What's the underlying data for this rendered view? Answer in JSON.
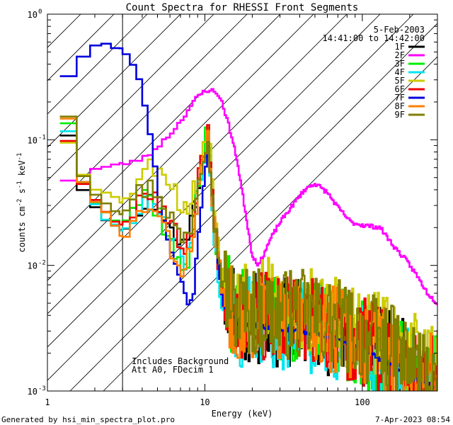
{
  "chart_data": {
    "type": "line",
    "title": "Count Spectra for RHESSI Front Segments",
    "xlabel": "Energy (keV)",
    "ylabel_parts": [
      "counts cm",
      "-2",
      " s",
      "-1",
      " keV",
      "-1"
    ],
    "xscale": "log",
    "yscale": "log",
    "xlim": [
      1,
      300
    ],
    "ylim": [
      0.001,
      1
    ],
    "x_ticks": [
      {
        "v": 1,
        "label": "1"
      },
      {
        "v": 10,
        "label": "10"
      },
      {
        "v": 100,
        "label": "100"
      }
    ],
    "y_ticks": [
      {
        "v": 0.001,
        "base": "10",
        "exp": "-3"
      },
      {
        "v": 0.01,
        "base": "10",
        "exp": "-2"
      },
      {
        "v": 0.1,
        "base": "10",
        "exp": "-1"
      },
      {
        "v": 1,
        "base": "10",
        "exp": "0"
      }
    ],
    "date": "5-Feb-2003",
    "time_range": "14:41:00 to 14:42:00",
    "excluded_region": {
      "from": 1,
      "to": 3
    },
    "annotations": [
      "Includes Background",
      "Att A0, FDecim 1"
    ],
    "series": [
      {
        "name": "1F",
        "color": "#000000",
        "seed": 11,
        "pts": [
          [
            1.3,
            0.14
          ],
          [
            1.6,
            0.045
          ],
          [
            2.0,
            0.03
          ],
          [
            2.5,
            0.022
          ],
          [
            3.0,
            0.018
          ],
          [
            3.6,
            0.028
          ],
          [
            4.3,
            0.033
          ],
          [
            5.0,
            0.03
          ],
          [
            6.0,
            0.02
          ],
          [
            7.0,
            0.014
          ],
          [
            8.0,
            0.02
          ],
          [
            9.0,
            0.04
          ],
          [
            10.5,
            0.11
          ],
          [
            11.5,
            0.02
          ],
          [
            13.0,
            0.006
          ],
          [
            16,
            0.004
          ],
          [
            25,
            0.0035
          ],
          [
            40,
            0.0035
          ],
          [
            70,
            0.003
          ],
          [
            120,
            0.0022
          ],
          [
            200,
            0.0015
          ],
          [
            280,
            0.0012
          ]
        ]
      },
      {
        "name": "2F",
        "color": "#ff00ff",
        "seed": 23,
        "pts": [
          [
            1.2,
            0.05
          ],
          [
            1.5,
            0.047
          ],
          [
            1.8,
            0.056
          ],
          [
            2.2,
            0.06
          ],
          [
            2.8,
            0.063
          ],
          [
            3.5,
            0.067
          ],
          [
            4.3,
            0.073
          ],
          [
            5,
            0.088
          ],
          [
            6,
            0.11
          ],
          [
            7,
            0.14
          ],
          [
            8,
            0.18
          ],
          [
            9,
            0.22
          ],
          [
            10,
            0.245
          ],
          [
            11,
            0.25
          ],
          [
            12.5,
            0.22
          ],
          [
            14,
            0.14
          ],
          [
            16,
            0.07
          ],
          [
            18,
            0.028
          ],
          [
            20,
            0.012
          ],
          [
            22,
            0.01
          ],
          [
            26,
            0.016
          ],
          [
            30,
            0.022
          ],
          [
            36,
            0.03
          ],
          [
            43,
            0.04
          ],
          [
            50,
            0.045
          ],
          [
            60,
            0.038
          ],
          [
            70,
            0.029
          ],
          [
            85,
            0.022
          ],
          [
            100,
            0.021
          ],
          [
            130,
            0.02
          ],
          [
            160,
            0.014
          ],
          [
            190,
            0.011
          ],
          [
            220,
            0.0085
          ],
          [
            260,
            0.006
          ],
          [
            300,
            0.005
          ]
        ]
      },
      {
        "name": "3F",
        "color": "#00ee00",
        "seed": 37,
        "pts": [
          [
            1.3,
            0.18
          ],
          [
            1.6,
            0.05
          ],
          [
            2.0,
            0.033
          ],
          [
            2.5,
            0.026
          ],
          [
            3.0,
            0.021
          ],
          [
            3.6,
            0.03
          ],
          [
            4.3,
            0.038
          ],
          [
            5.0,
            0.028
          ],
          [
            6.0,
            0.016
          ],
          [
            7.0,
            0.009
          ],
          [
            8.0,
            0.012
          ],
          [
            9.0,
            0.04
          ],
          [
            10.5,
            0.13
          ],
          [
            11.5,
            0.02
          ],
          [
            13.0,
            0.006
          ],
          [
            16,
            0.0042
          ],
          [
            25,
            0.0038
          ],
          [
            40,
            0.0036
          ],
          [
            70,
            0.003
          ],
          [
            120,
            0.0022
          ],
          [
            200,
            0.0015
          ],
          [
            280,
            0.0012
          ]
        ]
      },
      {
        "name": "4F",
        "color": "#00e5ee",
        "seed": 41,
        "pts": [
          [
            1.3,
            0.15
          ],
          [
            1.6,
            0.05
          ],
          [
            2.0,
            0.03
          ],
          [
            2.5,
            0.022
          ],
          [
            3.0,
            0.019
          ],
          [
            3.6,
            0.026
          ],
          [
            4.3,
            0.03
          ],
          [
            5.0,
            0.026
          ],
          [
            6.0,
            0.016
          ],
          [
            7.0,
            0.011
          ],
          [
            8.0,
            0.012
          ],
          [
            9.0,
            0.035
          ],
          [
            10.5,
            0.1
          ],
          [
            11.5,
            0.015
          ],
          [
            13.0,
            0.004
          ],
          [
            16,
            0.0035
          ],
          [
            25,
            0.0035
          ],
          [
            40,
            0.0033
          ],
          [
            70,
            0.0028
          ],
          [
            120,
            0.002
          ],
          [
            200,
            0.0014
          ],
          [
            280,
            0.0011
          ]
        ]
      },
      {
        "name": "5F",
        "color": "#cccc00",
        "seed": 53,
        "pts": [
          [
            1.3,
            0.11
          ],
          [
            1.6,
            0.06
          ],
          [
            2.0,
            0.042
          ],
          [
            2.5,
            0.036
          ],
          [
            3.0,
            0.032
          ],
          [
            3.6,
            0.045
          ],
          [
            4.3,
            0.058
          ],
          [
            5.0,
            0.065
          ],
          [
            6.0,
            0.05
          ],
          [
            7.0,
            0.03
          ],
          [
            8.0,
            0.03
          ],
          [
            9.0,
            0.05
          ],
          [
            10.5,
            0.13
          ],
          [
            11.5,
            0.03
          ],
          [
            13.0,
            0.008
          ],
          [
            16,
            0.0055
          ],
          [
            25,
            0.005
          ],
          [
            40,
            0.0045
          ],
          [
            70,
            0.0038
          ],
          [
            120,
            0.0028
          ],
          [
            200,
            0.0019
          ],
          [
            280,
            0.0014
          ]
        ]
      },
      {
        "name": "6F",
        "color": "#ee0000",
        "seed": 67,
        "pts": [
          [
            1.3,
            0.12
          ],
          [
            1.6,
            0.05
          ],
          [
            2.0,
            0.033
          ],
          [
            2.5,
            0.026
          ],
          [
            3.0,
            0.02
          ],
          [
            3.6,
            0.032
          ],
          [
            4.3,
            0.04
          ],
          [
            5.0,
            0.035
          ],
          [
            6.0,
            0.022
          ],
          [
            7.0,
            0.014
          ],
          [
            8.0,
            0.016
          ],
          [
            9.0,
            0.045
          ],
          [
            10.5,
            0.12
          ],
          [
            11.5,
            0.02
          ],
          [
            13.0,
            0.006
          ],
          [
            16,
            0.0042
          ],
          [
            25,
            0.0038
          ],
          [
            40,
            0.0036
          ],
          [
            70,
            0.003
          ],
          [
            120,
            0.0022
          ],
          [
            200,
            0.0015
          ],
          [
            280,
            0.0012
          ]
        ]
      },
      {
        "name": "7F",
        "color": "#0000dd",
        "seed": 79,
        "pts": [
          [
            1.2,
            0.28
          ],
          [
            1.4,
            0.34
          ],
          [
            1.6,
            0.43
          ],
          [
            1.8,
            0.5
          ],
          [
            2.1,
            0.56
          ],
          [
            2.4,
            0.58
          ],
          [
            2.8,
            0.55
          ],
          [
            3.1,
            0.5
          ],
          [
            3.5,
            0.41
          ],
          [
            3.9,
            0.28
          ],
          [
            4.3,
            0.16
          ],
          [
            4.7,
            0.075
          ],
          [
            5.2,
            0.032
          ],
          [
            5.8,
            0.017
          ],
          [
            6.5,
            0.01
          ],
          [
            7.2,
            0.007
          ],
          [
            7.8,
            0.005
          ],
          [
            8.5,
            0.006
          ],
          [
            9.0,
            0.015
          ],
          [
            9.5,
            0.03
          ],
          [
            10.5,
            0.09
          ],
          [
            11.5,
            0.02
          ],
          [
            13,
            0.005
          ],
          [
            16,
            0.0035
          ],
          [
            25,
            0.0032
          ],
          [
            40,
            0.003
          ],
          [
            70,
            0.0026
          ],
          [
            120,
            0.0019
          ],
          [
            200,
            0.0013
          ],
          [
            280,
            0.0011
          ]
        ]
      },
      {
        "name": "8F",
        "color": "#ff7f00",
        "seed": 83,
        "pts": [
          [
            1.3,
            0.2
          ],
          [
            1.6,
            0.05
          ],
          [
            2.0,
            0.032
          ],
          [
            2.5,
            0.024
          ],
          [
            3.0,
            0.016
          ],
          [
            3.6,
            0.022
          ],
          [
            4.3,
            0.03
          ],
          [
            5.0,
            0.025
          ],
          [
            6.0,
            0.014
          ],
          [
            7.0,
            0.009
          ],
          [
            8.0,
            0.012
          ],
          [
            9.0,
            0.035
          ],
          [
            10.5,
            0.11
          ],
          [
            11.5,
            0.02
          ],
          [
            13.0,
            0.006
          ],
          [
            16,
            0.0042
          ],
          [
            25,
            0.004
          ],
          [
            40,
            0.0037
          ],
          [
            70,
            0.0031
          ],
          [
            120,
            0.0023
          ],
          [
            200,
            0.0016
          ],
          [
            280,
            0.0012
          ]
        ]
      },
      {
        "name": "9F",
        "color": "#7f7f00",
        "seed": 97,
        "pts": [
          [
            1.3,
            0.2
          ],
          [
            1.6,
            0.06
          ],
          [
            2.0,
            0.038
          ],
          [
            2.5,
            0.03
          ],
          [
            3.0,
            0.026
          ],
          [
            3.6,
            0.035
          ],
          [
            4.3,
            0.042
          ],
          [
            5.0,
            0.04
          ],
          [
            6.0,
            0.026
          ],
          [
            7.0,
            0.016
          ],
          [
            8.0,
            0.018
          ],
          [
            9.0,
            0.045
          ],
          [
            10.5,
            0.12
          ],
          [
            11.5,
            0.022
          ],
          [
            13.0,
            0.007
          ],
          [
            16,
            0.0045
          ],
          [
            25,
            0.0042
          ],
          [
            40,
            0.004
          ],
          [
            70,
            0.0034
          ],
          [
            120,
            0.0025
          ],
          [
            200,
            0.0017
          ],
          [
            280,
            0.0013
          ]
        ]
      }
    ]
  },
  "footer": {
    "generated": "Generated by hsi_min_spectra_plot.pro",
    "timestamp": "7-Apr-2023 08:54"
  }
}
